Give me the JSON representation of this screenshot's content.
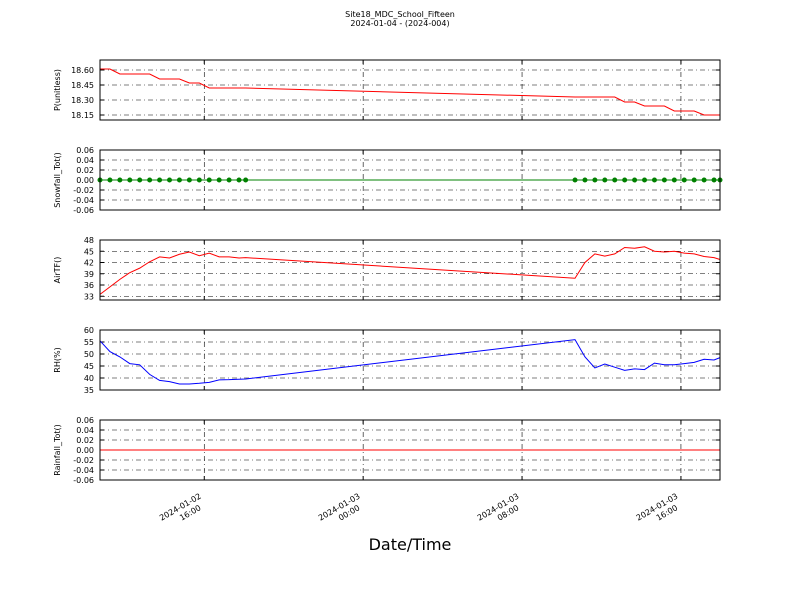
{
  "chart_data": {
    "type": "line",
    "title": "Site18_MDC_School_Fifteen",
    "subtitle": "2024-01-04 - (2024-004)",
    "x_label": "Date/Time",
    "grid": true,
    "x": [
      "2024-01-02 10:45",
      "2024-01-02 11:15",
      "2024-01-02 11:45",
      "2024-01-02 12:15",
      "2024-01-02 12:45",
      "2024-01-02 13:15",
      "2024-01-02 13:45",
      "2024-01-02 14:15",
      "2024-01-02 14:45",
      "2024-01-02 15:15",
      "2024-01-02 15:45",
      "2024-01-02 16:15",
      "2024-01-02 16:45",
      "2024-01-02 17:15",
      "2024-01-02 17:45",
      "2024-01-02 18:05",
      "2024-01-03 10:40",
      "2024-01-03 11:10",
      "2024-01-03 11:40",
      "2024-01-03 12:10",
      "2024-01-03 12:40",
      "2024-01-03 13:10",
      "2024-01-03 13:40",
      "2024-01-03 14:10",
      "2024-01-03 14:40",
      "2024-01-03 15:10",
      "2024-01-03 15:40",
      "2024-01-03 16:10",
      "2024-01-03 16:40",
      "2024-01-03 17:10",
      "2024-01-03 17:40",
      "2024-01-03 17:58"
    ],
    "xlim": [
      "2024-01-02 10:45",
      "2024-01-03 17:58"
    ],
    "xticks": [
      "2024-01-02 16:00",
      "2024-01-03 00:00",
      "2024-01-03 08:00",
      "2024-01-03 16:00"
    ],
    "panels": [
      {
        "ylabel": "P(unitless)",
        "ylim": [
          18.1,
          18.7
        ],
        "yticks": [
          {
            "value": 18.15,
            "label": "18.15"
          },
          {
            "value": 18.3,
            "label": "18.30"
          },
          {
            "value": 18.45,
            "label": "18.45"
          },
          {
            "value": 18.6,
            "label": "18.60"
          }
        ],
        "series": [
          {
            "color": "#ff0000",
            "values": [
              18.61,
              18.61,
              18.56,
              18.56,
              18.56,
              18.56,
              18.51,
              18.51,
              18.51,
              18.47,
              18.47,
              18.42,
              18.42,
              18.42,
              18.42,
              18.42,
              18.33,
              18.33,
              18.33,
              18.33,
              18.33,
              18.28,
              18.28,
              18.24,
              18.24,
              18.24,
              18.19,
              18.19,
              18.19,
              18.15,
              18.15,
              18.15
            ]
          }
        ]
      },
      {
        "ylabel": "Snowfall_Tot()",
        "ylim": [
          -0.06,
          0.06
        ],
        "yticks": [
          -0.06,
          -0.04,
          -0.02,
          {
            "value": 0,
            "label": "0.00"
          },
          0.02,
          0.04,
          0.06
        ],
        "series": [
          {
            "color": "#008000",
            "marker": "circle",
            "values": [
              0,
              0,
              0,
              0,
              0,
              0,
              0,
              0,
              0,
              0,
              0,
              0,
              0,
              0,
              0,
              0,
              0,
              0,
              0,
              0,
              0,
              0,
              0,
              0,
              0,
              0,
              0,
              0,
              0,
              0,
              0,
              0
            ]
          }
        ]
      },
      {
        "ylabel": "AirTF()",
        "ylim": [
          32,
          48
        ],
        "yticks": [
          33,
          36,
          39,
          42,
          45,
          48
        ],
        "series": [
          {
            "color": "#ff0000",
            "values": [
              33.5,
              35.5,
              37.5,
              39.3,
              40.5,
              42.2,
              43.5,
              43.2,
              44.2,
              44.8,
              43.8,
              44.5,
              43.5,
              43.5,
              43.2,
              43.3,
              37.8,
              42.0,
              44.3,
              43.7,
              44.3,
              46.0,
              45.8,
              46.2,
              45.0,
              44.8,
              45.0,
              44.5,
              44.3,
              43.6,
              43.3,
              42.8
            ]
          }
        ]
      },
      {
        "ylabel": "RH(%)",
        "ylim": [
          35,
          60
        ],
        "yticks": [
          35,
          40,
          45,
          50,
          55,
          60
        ],
        "series": [
          {
            "color": "#0000ff",
            "values": [
              55.5,
              51.0,
              48.8,
              46.0,
              45.5,
              41.5,
              39.0,
              38.5,
              37.5,
              37.5,
              37.8,
              38.2,
              39.2,
              39.3,
              39.5,
              39.6,
              56.0,
              48.8,
              44.2,
              45.8,
              44.5,
              43.2,
              43.8,
              43.5,
              46.2,
              45.5,
              45.5,
              46.0,
              46.5,
              47.8,
              47.5,
              48.5
            ]
          }
        ]
      },
      {
        "ylabel": "Rainfall_Tot()",
        "ylim": [
          -0.06,
          0.06
        ],
        "yticks": [
          -0.06,
          -0.04,
          -0.02,
          {
            "value": 0,
            "label": "0.00"
          },
          0.02,
          0.04,
          0.06
        ],
        "series": [
          {
            "color": "#ff0000",
            "values": [
              0,
              0,
              0,
              0,
              0,
              0,
              0,
              0,
              0,
              0,
              0,
              0,
              0,
              0,
              0,
              0,
              0,
              0,
              0,
              0,
              0,
              0,
              0,
              0,
              0,
              0,
              0,
              0,
              0,
              0,
              0,
              0
            ]
          }
        ]
      }
    ]
  }
}
